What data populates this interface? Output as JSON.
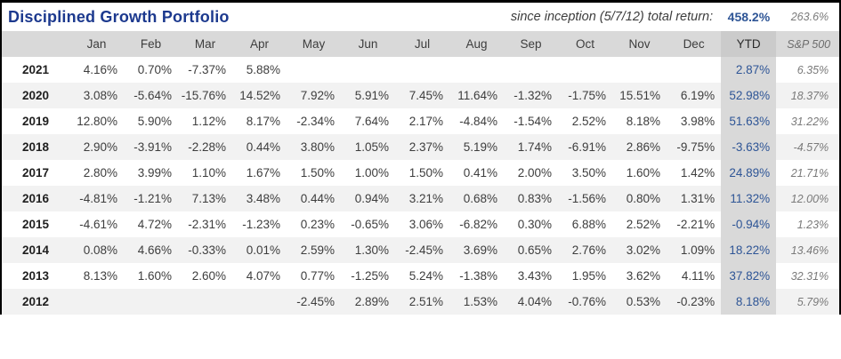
{
  "chart_data": {
    "type": "table",
    "title": "Disciplined Growth Portfolio",
    "annotation": "since inception (5/7/12) total return:",
    "total_return": "458.2%",
    "benchmark_total_return": "263.6%",
    "columns": [
      "Jan",
      "Feb",
      "Mar",
      "Apr",
      "May",
      "Jun",
      "Jul",
      "Aug",
      "Sep",
      "Oct",
      "Nov",
      "Dec"
    ],
    "ytd_label": "YTD",
    "benchmark_label": "S&P 500",
    "rows": [
      {
        "year": "2021",
        "monthly": [
          "4.16%",
          "0.70%",
          "-7.37%",
          "5.88%",
          "",
          "",
          "",
          "",
          "",
          "",
          "",
          ""
        ],
        "ytd": "2.87%",
        "benchmark": "6.35%"
      },
      {
        "year": "2020",
        "monthly": [
          "3.08%",
          "-5.64%",
          "-15.76%",
          "14.52%",
          "7.92%",
          "5.91%",
          "7.45%",
          "11.64%",
          "-1.32%",
          "-1.75%",
          "15.51%",
          "6.19%"
        ],
        "ytd": "52.98%",
        "benchmark": "18.37%"
      },
      {
        "year": "2019",
        "monthly": [
          "12.80%",
          "5.90%",
          "1.12%",
          "8.17%",
          "-2.34%",
          "7.64%",
          "2.17%",
          "-4.84%",
          "-1.54%",
          "2.52%",
          "8.18%",
          "3.98%"
        ],
        "ytd": "51.63%",
        "benchmark": "31.22%"
      },
      {
        "year": "2018",
        "monthly": [
          "2.90%",
          "-3.91%",
          "-2.28%",
          "0.44%",
          "3.80%",
          "1.05%",
          "2.37%",
          "5.19%",
          "1.74%",
          "-6.91%",
          "2.86%",
          "-9.75%"
        ],
        "ytd": "-3.63%",
        "benchmark": "-4.57%"
      },
      {
        "year": "2017",
        "monthly": [
          "2.80%",
          "3.99%",
          "1.10%",
          "1.67%",
          "1.50%",
          "1.00%",
          "1.50%",
          "0.41%",
          "2.00%",
          "3.50%",
          "1.60%",
          "1.42%"
        ],
        "ytd": "24.89%",
        "benchmark": "21.71%"
      },
      {
        "year": "2016",
        "monthly": [
          "-4.81%",
          "-1.21%",
          "7.13%",
          "3.48%",
          "0.44%",
          "0.94%",
          "3.21%",
          "0.68%",
          "0.83%",
          "-1.56%",
          "0.80%",
          "1.31%"
        ],
        "ytd": "11.32%",
        "benchmark": "12.00%"
      },
      {
        "year": "2015",
        "monthly": [
          "-4.61%",
          "4.72%",
          "-2.31%",
          "-1.23%",
          "0.23%",
          "-0.65%",
          "3.06%",
          "-6.82%",
          "0.30%",
          "6.88%",
          "2.52%",
          "-2.21%"
        ],
        "ytd": "-0.94%",
        "benchmark": "1.23%"
      },
      {
        "year": "2014",
        "monthly": [
          "0.08%",
          "4.66%",
          "-0.33%",
          "0.01%",
          "2.59%",
          "1.30%",
          "-2.45%",
          "3.69%",
          "0.65%",
          "2.76%",
          "3.02%",
          "1.09%"
        ],
        "ytd": "18.22%",
        "benchmark": "13.46%"
      },
      {
        "year": "2013",
        "monthly": [
          "8.13%",
          "1.60%",
          "2.60%",
          "4.07%",
          "0.77%",
          "-1.25%",
          "5.24%",
          "-1.38%",
          "3.43%",
          "1.95%",
          "3.62%",
          "4.11%"
        ],
        "ytd": "37.82%",
        "benchmark": "32.31%"
      },
      {
        "year": "2012",
        "monthly": [
          "",
          "",
          "",
          "",
          "-2.45%",
          "2.89%",
          "2.51%",
          "1.53%",
          "4.04%",
          "-0.76%",
          "0.53%",
          "-0.23%"
        ],
        "ytd": "8.18%",
        "benchmark": "5.79%"
      }
    ]
  },
  "colors": {
    "title_blue": "#1c398e",
    "ytd_blue": "#2e5596",
    "header_gray": "#d9d9d9",
    "stripe_gray": "#f2f2f2",
    "benchmark_gray": "#7a7a7a",
    "border_black": "#000000"
  }
}
